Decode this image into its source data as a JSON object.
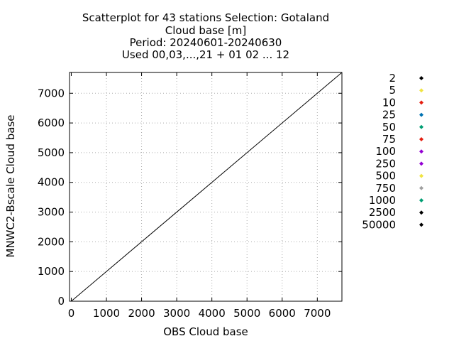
{
  "chart_data": {
    "type": "scatter",
    "title_lines": [
      "Scatterplot for   43 stations Selection: Gotaland",
      "Cloud base [m]",
      "Period: 20240601-20240630",
      "Used 00,03,...,21 + 01 02 ... 12"
    ],
    "xlabel": "OBS Cloud base",
    "ylabel": "MNWC2-Bscale Cloud base",
    "xlim": [
      -50,
      7700
    ],
    "ylim": [
      0,
      7700
    ],
    "xticks": [
      0,
      1000,
      2000,
      3000,
      4000,
      5000,
      6000,
      7000
    ],
    "yticks": [
      0,
      1000,
      2000,
      3000,
      4000,
      5000,
      6000,
      7000
    ],
    "grid": true,
    "grid_note": "dotted vertical lines at 1000-m x steps; dotted horizontal lines at 1000-m y steps",
    "diagonal": true,
    "legend_placement": "right",
    "series": [
      {
        "name": "2",
        "color": "#000000"
      },
      {
        "name": "5",
        "color": "#f0e442"
      },
      {
        "name": "10",
        "color": "#e51e10"
      },
      {
        "name": "25",
        "color": "#0072b2"
      },
      {
        "name": "50",
        "color": "#009e73"
      },
      {
        "name": "75",
        "color": "#e51e10"
      },
      {
        "name": "100",
        "color": "#9400d3"
      },
      {
        "name": "250",
        "color": "#9400d3"
      },
      {
        "name": "500",
        "color": "#f0e442"
      },
      {
        "name": "750",
        "color": "#a0a0a0"
      },
      {
        "name": "1000",
        "color": "#009e73"
      },
      {
        "name": "2500",
        "color": "#000000"
      },
      {
        "name": "50000",
        "color": "#000000"
      }
    ]
  }
}
